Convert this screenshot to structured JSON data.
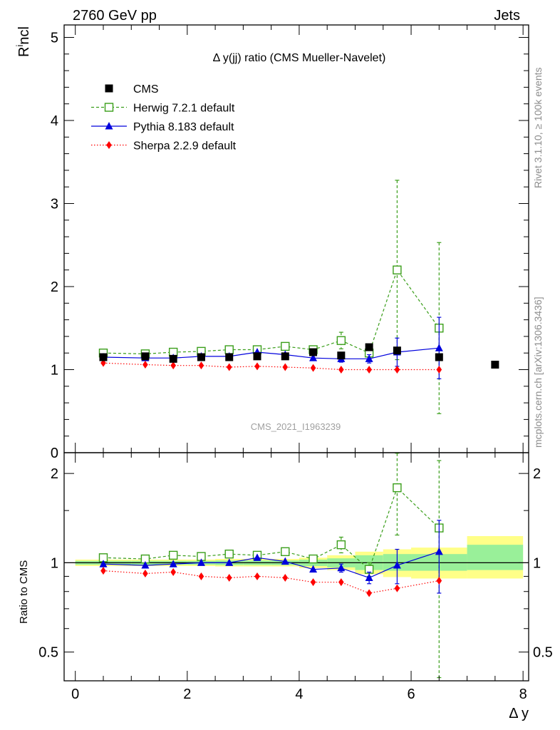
{
  "header": {
    "left": "2760 GeV pp",
    "right": "Jets",
    "side_top": "Rivet 3.1.10, ≥ 100k events",
    "side_bottom": "mcplots.cern.ch [arXiv:1306.3436]"
  },
  "chart_data": [
    {
      "type": "scatter",
      "panel": "main",
      "title": "Δ y(jj) ratio (CMS Mueller-Navelet)",
      "watermark": "CMS_2021_I1963239",
      "ylabel": "R^incl",
      "ylabel_base": "R",
      "ylabel_sup": "i",
      "ylabel_rest": "ncl",
      "xlim": [
        -0.2,
        8.1
      ],
      "ylim": [
        0,
        5.15
      ],
      "yticks": [
        0,
        1,
        2,
        3,
        4,
        5
      ],
      "ytick_labels": [
        "0",
        "1",
        "2",
        "3",
        "4",
        "5"
      ],
      "legend_position": "top-left",
      "series": [
        {
          "name": "CMS",
          "legend": "CMS",
          "style": "square",
          "color": "#000000",
          "x": [
            0.5,
            1.25,
            1.75,
            2.25,
            2.75,
            3.25,
            3.75,
            4.25,
            4.75,
            5.25,
            5.75,
            6.5,
            7.5
          ],
          "y": [
            1.15,
            1.16,
            1.13,
            1.15,
            1.15,
            1.16,
            1.16,
            1.21,
            1.17,
            1.27,
            1.23,
            1.15,
            1.06
          ]
        },
        {
          "name": "Herwig",
          "legend": "Herwig 7.2.1 default",
          "style": "open-square",
          "color": "#3a9e1a",
          "line": "dashed",
          "x": [
            0.5,
            1.25,
            1.75,
            2.25,
            2.75,
            3.25,
            3.75,
            4.25,
            4.75,
            5.25,
            5.75,
            6.5
          ],
          "y": [
            1.2,
            1.19,
            1.21,
            1.22,
            1.24,
            1.24,
            1.28,
            1.24,
            1.35,
            1.2,
            2.2,
            1.5
          ],
          "err": [
            0.02,
            0.02,
            0.02,
            0.02,
            0.02,
            0.02,
            0.03,
            0.04,
            0.1,
            0.05,
            1.08,
            1.03
          ]
        },
        {
          "name": "Pythia",
          "legend": "Pythia 8.183 default",
          "style": "triangle",
          "color": "#0000dd",
          "line": "solid",
          "x": [
            0.5,
            1.25,
            1.75,
            2.25,
            2.75,
            3.25,
            3.75,
            4.25,
            4.75,
            5.25,
            5.75,
            6.5
          ],
          "y": [
            1.15,
            1.14,
            1.14,
            1.16,
            1.16,
            1.21,
            1.18,
            1.14,
            1.13,
            1.13,
            1.21,
            1.26
          ],
          "err": [
            0.01,
            0.01,
            0.01,
            0.01,
            0.01,
            0.02,
            0.02,
            0.03,
            0.04,
            0.05,
            0.17,
            0.37
          ]
        },
        {
          "name": "Sherpa",
          "legend": "Sherpa 2.2.9 default",
          "style": "diamond",
          "color": "#ff0000",
          "line": "dotted",
          "x": [
            0.5,
            1.25,
            1.75,
            2.25,
            2.75,
            3.25,
            3.75,
            4.25,
            4.75,
            5.25,
            5.75,
            6.5
          ],
          "y": [
            1.08,
            1.06,
            1.05,
            1.05,
            1.03,
            1.04,
            1.03,
            1.02,
            1.0,
            1.0,
            1.0,
            1.0
          ],
          "err": [
            0.01,
            0.01,
            0.01,
            0.01,
            0.01,
            0.01,
            0.01,
            0.01,
            0.01,
            0.01,
            0.01,
            0.01
          ]
        }
      ]
    },
    {
      "type": "scatter",
      "panel": "ratio",
      "ylabel": "Ratio to CMS",
      "xlabel": "Δ y",
      "xlim": [
        -0.2,
        8.1
      ],
      "xticks": [
        0,
        2,
        4,
        6,
        8
      ],
      "xtick_labels": [
        "0",
        "2",
        "4",
        "6",
        "8"
      ],
      "ylim_log": [
        0.4,
        2.35
      ],
      "yticks": [
        0.5,
        1,
        2
      ],
      "ytick_labels": [
        "0.5",
        "1",
        "2"
      ],
      "reference_line": 1,
      "bands": {
        "edges": [
          0,
          1,
          1.5,
          2,
          2.5,
          3,
          3.5,
          4,
          4.5,
          5,
          5.5,
          6,
          7,
          8
        ],
        "stat_lo": [
          0.985,
          0.985,
          0.985,
          0.985,
          0.982,
          0.982,
          0.982,
          0.975,
          0.965,
          0.945,
          0.94,
          0.94,
          0.945
        ],
        "stat_hi": [
          1.015,
          1.015,
          1.015,
          1.015,
          1.018,
          1.018,
          1.018,
          1.025,
          1.035,
          1.06,
          1.07,
          1.07,
          1.15
        ],
        "total_lo": [
          0.975,
          0.975,
          0.975,
          0.975,
          0.972,
          0.972,
          0.972,
          0.96,
          0.945,
          0.915,
          0.895,
          0.885,
          0.885
        ],
        "total_hi": [
          1.025,
          1.025,
          1.025,
          1.025,
          1.03,
          1.03,
          1.03,
          1.04,
          1.06,
          1.09,
          1.11,
          1.125,
          1.23
        ],
        "stat_color": "#99f099",
        "total_color": "#ffff88"
      },
      "series": [
        {
          "name": "Herwig",
          "style": "open-square",
          "color": "#3a9e1a",
          "line": "dashed",
          "x": [
            0.5,
            1.25,
            1.75,
            2.25,
            2.75,
            3.25,
            3.75,
            4.25,
            4.75,
            5.25,
            5.75,
            6.5
          ],
          "y": [
            1.04,
            1.03,
            1.06,
            1.05,
            1.07,
            1.06,
            1.09,
            1.03,
            1.15,
            0.95,
            1.79,
            1.31
          ],
          "err": [
            0.02,
            0.02,
            0.02,
            0.02,
            0.02,
            0.02,
            0.02,
            0.03,
            0.07,
            0.05,
            0.55,
            0.9
          ]
        },
        {
          "name": "Pythia",
          "style": "triangle",
          "color": "#0000dd",
          "line": "solid",
          "x": [
            0.5,
            1.25,
            1.75,
            2.25,
            2.75,
            3.25,
            3.75,
            4.25,
            4.75,
            5.25,
            5.75,
            6.5
          ],
          "y": [
            0.99,
            0.98,
            0.99,
            1.0,
            1.0,
            1.04,
            1.01,
            0.95,
            0.96,
            0.89,
            0.98,
            1.09
          ],
          "err": [
            0.01,
            0.01,
            0.01,
            0.01,
            0.01,
            0.01,
            0.02,
            0.02,
            0.03,
            0.04,
            0.13,
            0.3
          ]
        },
        {
          "name": "Sherpa",
          "style": "diamond",
          "color": "#ff0000",
          "line": "dotted",
          "x": [
            0.5,
            1.25,
            1.75,
            2.25,
            2.75,
            3.25,
            3.75,
            4.25,
            4.75,
            5.25,
            5.75,
            6.5
          ],
          "y": [
            0.94,
            0.92,
            0.93,
            0.9,
            0.89,
            0.9,
            0.89,
            0.86,
            0.86,
            0.79,
            0.82,
            0.87
          ],
          "err": [
            0.01,
            0.01,
            0.01,
            0.01,
            0.01,
            0.01,
            0.01,
            0.01,
            0.01,
            0.01,
            0.01,
            0.01
          ]
        }
      ]
    }
  ]
}
